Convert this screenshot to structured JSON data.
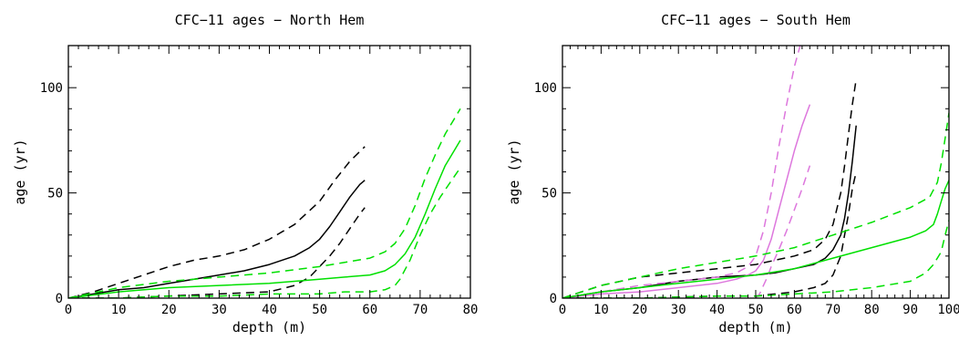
{
  "chart_data": [
    {
      "type": "line",
      "title": "CFC−11 ages − North Hem",
      "xlabel": "depth (m)",
      "ylabel": "age (yr)",
      "xlim": [
        0,
        80
      ],
      "ylim": [
        0,
        120
      ],
      "xticks": [
        "0",
        "10",
        "20",
        "30",
        "40",
        "50",
        "60",
        "70",
        "80"
      ],
      "yticks": [
        "0",
        "50",
        "100"
      ],
      "grid": false,
      "legend": "none",
      "series": [
        {
          "color": "#000000",
          "dash": "solid",
          "x": [
            0,
            5,
            10,
            15,
            20,
            25,
            30,
            35,
            40,
            45,
            48,
            50,
            52,
            54,
            56,
            58,
            59
          ],
          "y": [
            0,
            2,
            4,
            5,
            7,
            9,
            11,
            13,
            16,
            20,
            24,
            28,
            34,
            41,
            48,
            54,
            56
          ]
        },
        {
          "color": "#000000",
          "dash": "dashed",
          "x": [
            0,
            5,
            10,
            15,
            20,
            25,
            30,
            35,
            40,
            45,
            50,
            53,
            56,
            59
          ],
          "y": [
            0,
            3,
            7,
            11,
            15,
            18,
            20,
            23,
            28,
            35,
            46,
            56,
            65,
            72
          ]
        },
        {
          "color": "#000000",
          "dash": "dashed",
          "x": [
            0,
            10,
            20,
            30,
            40,
            45,
            48,
            50,
            52,
            54,
            56,
            58,
            59
          ],
          "y": [
            0,
            0,
            1,
            2,
            3,
            6,
            10,
            15,
            20,
            26,
            33,
            40,
            43
          ]
        },
        {
          "color": "#00e000",
          "dash": "solid",
          "x": [
            0,
            10,
            20,
            30,
            40,
            50,
            55,
            60,
            63,
            65,
            67,
            69,
            71,
            73,
            75,
            77,
            78
          ],
          "y": [
            0,
            3,
            5,
            6,
            7,
            9,
            10,
            11,
            13,
            16,
            21,
            29,
            40,
            52,
            63,
            71,
            75
          ]
        },
        {
          "color": "#00e000",
          "dash": "dashed",
          "x": [
            0,
            10,
            20,
            30,
            40,
            50,
            55,
            60,
            63,
            65,
            67,
            69,
            71,
            73,
            75,
            77,
            78
          ],
          "y": [
            0,
            5,
            8,
            10,
            12,
            15,
            17,
            19,
            22,
            26,
            33,
            44,
            57,
            68,
            78,
            86,
            90
          ]
        },
        {
          "color": "#00e000",
          "dash": "dashed",
          "x": [
            0,
            10,
            20,
            30,
            40,
            50,
            55,
            60,
            63,
            65,
            66,
            68,
            70,
            72,
            74,
            76,
            78
          ],
          "y": [
            0,
            0,
            1,
            1,
            2,
            2,
            3,
            3,
            4,
            6,
            9,
            18,
            30,
            40,
            48,
            55,
            62
          ]
        }
      ]
    },
    {
      "type": "line",
      "title": "CFC−11 ages − South Hem",
      "xlabel": "depth (m)",
      "ylabel": "age (yr)",
      "xlim": [
        0,
        100
      ],
      "ylim": [
        0,
        120
      ],
      "xticks": [
        "0",
        "10",
        "20",
        "30",
        "40",
        "50",
        "60",
        "70",
        "80",
        "90",
        "100"
      ],
      "yticks": [
        "0",
        "50",
        "100"
      ],
      "grid": false,
      "legend": "none",
      "series": [
        {
          "color": "#000000",
          "dash": "solid",
          "x": [
            0,
            10,
            20,
            30,
            40,
            50,
            55,
            60,
            65,
            68,
            70,
            72,
            73,
            74,
            75,
            76
          ],
          "y": [
            0,
            3,
            5,
            8,
            10,
            11,
            12,
            14,
            16,
            19,
            23,
            30,
            38,
            50,
            65,
            82
          ]
        },
        {
          "color": "#000000",
          "dash": "dashed",
          "x": [
            0,
            10,
            20,
            30,
            40,
            50,
            55,
            60,
            65,
            68,
            70,
            72,
            73,
            74,
            75,
            76
          ],
          "y": [
            0,
            6,
            10,
            12,
            14,
            16,
            18,
            20,
            23,
            28,
            35,
            50,
            63,
            78,
            92,
            104
          ]
        },
        {
          "color": "#000000",
          "dash": "dashed",
          "x": [
            0,
            20,
            40,
            50,
            55,
            60,
            65,
            68,
            70,
            72,
            73,
            74,
            75,
            76
          ],
          "y": [
            0,
            0,
            1,
            1,
            2,
            3,
            5,
            7,
            11,
            20,
            30,
            40,
            52,
            60
          ]
        },
        {
          "color": "#dd77dd",
          "dash": "solid",
          "x": [
            0,
            10,
            20,
            30,
            40,
            45,
            48,
            50,
            52,
            54,
            56,
            58,
            60,
            62,
            64
          ],
          "y": [
            0,
            2,
            3,
            5,
            7,
            9,
            11,
            13,
            18,
            28,
            42,
            56,
            70,
            82,
            92
          ]
        },
        {
          "color": "#dd77dd",
          "dash": "dashed",
          "x": [
            0,
            10,
            20,
            30,
            40,
            45,
            48,
            50,
            52,
            54,
            56,
            58,
            60,
            61.5
          ],
          "y": [
            0,
            3,
            6,
            8,
            10,
            12,
            15,
            20,
            32,
            50,
            72,
            92,
            110,
            120
          ]
        },
        {
          "color": "#dd77dd",
          "dash": "dashed",
          "x": [
            50,
            51,
            52,
            53,
            54,
            56,
            58,
            60,
            62,
            64
          ],
          "y": [
            0,
            2,
            6,
            10,
            15,
            23,
            32,
            42,
            52,
            63
          ]
        },
        {
          "color": "#00e000",
          "dash": "solid",
          "x": [
            0,
            10,
            20,
            30,
            40,
            50,
            60,
            70,
            80,
            90,
            94,
            96,
            97,
            98,
            99,
            100
          ],
          "y": [
            0,
            3,
            5,
            7,
            9,
            11,
            14,
            19,
            24,
            29,
            32,
            35,
            40,
            46,
            52,
            56
          ]
        },
        {
          "color": "#00e000",
          "dash": "dashed",
          "x": [
            0,
            10,
            20,
            30,
            40,
            50,
            60,
            70,
            80,
            90,
            95,
            97,
            98,
            99,
            100
          ],
          "y": [
            0,
            6,
            10,
            14,
            17,
            20,
            24,
            30,
            36,
            43,
            48,
            55,
            64,
            76,
            88
          ]
        },
        {
          "color": "#00e000",
          "dash": "dashed",
          "x": [
            0,
            20,
            40,
            50,
            60,
            70,
            80,
            90,
            94,
            96,
            98,
            99,
            100
          ],
          "y": [
            0,
            0,
            1,
            1,
            2,
            3,
            5,
            8,
            12,
            16,
            22,
            30,
            37
          ]
        }
      ]
    }
  ]
}
